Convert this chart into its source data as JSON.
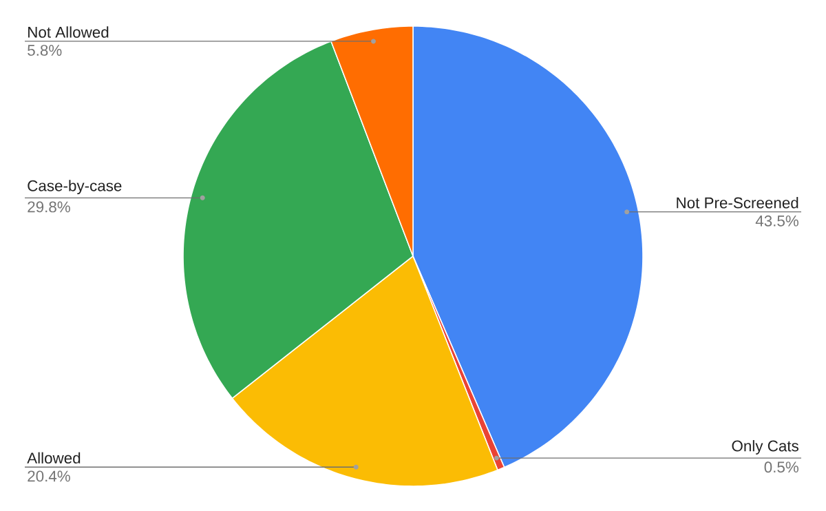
{
  "chart_data": {
    "type": "pie",
    "categories": [
      "Not Pre-Screened",
      "Only Cats",
      "Allowed",
      "Case-by-case",
      "Not Allowed"
    ],
    "values": [
      43.5,
      0.5,
      20.4,
      29.8,
      5.8
    ],
    "colors": [
      "#4285f4",
      "#ea4335",
      "#fbbc04",
      "#34a853",
      "#ff6d01"
    ],
    "value_labels": [
      "43.5%",
      "0.5%",
      "20.4%",
      "29.8%",
      "5.8%"
    ]
  }
}
